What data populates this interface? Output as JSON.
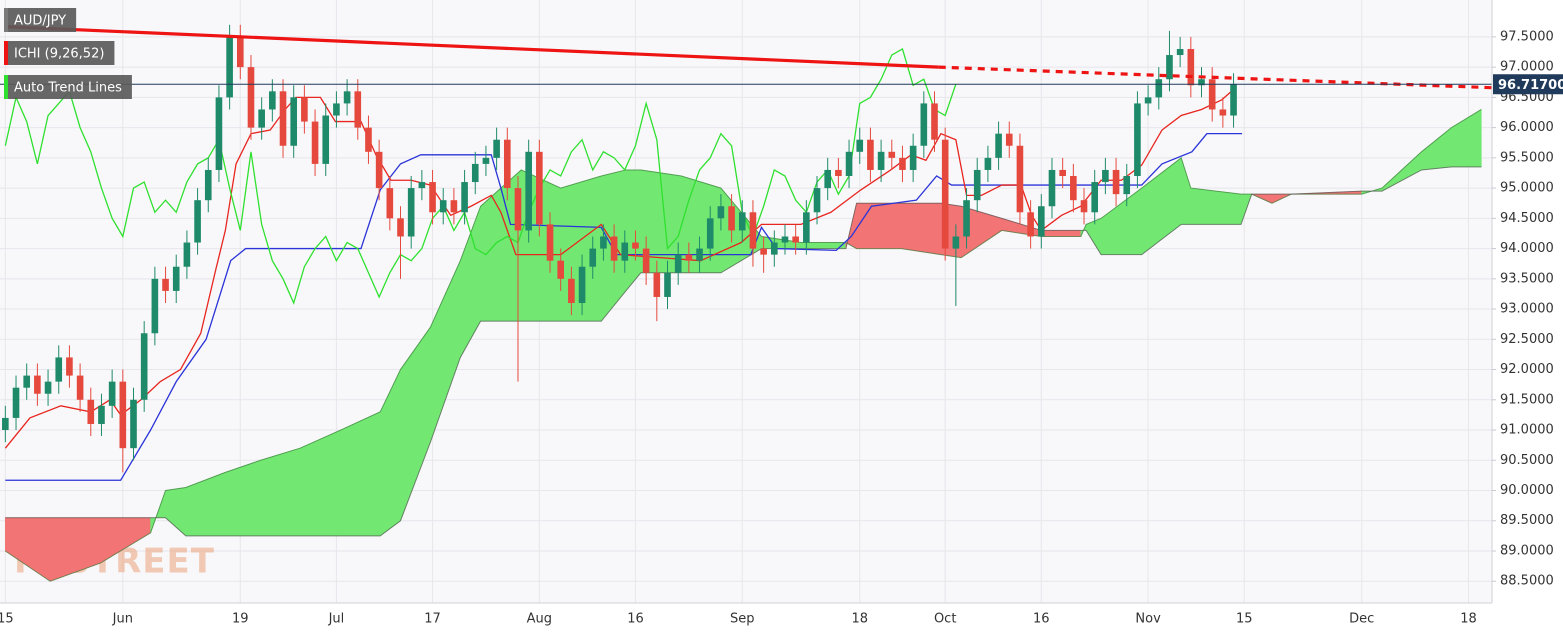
{
  "chart_data": {
    "type": "candlestick",
    "title": "AUD/JPY",
    "indicator": "ICHI (9,26,52)",
    "trend_label": "Auto Trend Lines",
    "watermark": "FXSTREET",
    "grid": true,
    "up_color": "#1f8a6a",
    "down_color": "#e5493d",
    "xlim": [
      -0.5,
      139.2
    ],
    "xticks": [
      {
        "value": 0,
        "label": "15"
      },
      {
        "value": 11,
        "label": "Jun"
      },
      {
        "value": 22,
        "label": "19"
      },
      {
        "value": 31,
        "label": "Jul"
      },
      {
        "value": 40,
        "label": "17"
      },
      {
        "value": 50,
        "label": "Aug"
      },
      {
        "value": 59,
        "label": "16"
      },
      {
        "value": 69,
        "label": "Sep"
      },
      {
        "value": 80,
        "label": "18"
      },
      {
        "value": 88,
        "label": "Oct"
      },
      {
        "value": 97,
        "label": "16"
      },
      {
        "value": 107,
        "label": "Nov"
      },
      {
        "value": 116,
        "label": "15"
      },
      {
        "value": 127,
        "label": "Dec"
      },
      {
        "value": 137,
        "label": "18"
      }
    ],
    "ylim": [
      88.14,
      98.11
    ],
    "yticks": [
      {
        "value": 88.5,
        "label": "88.5000"
      },
      {
        "value": 89,
        "label": "89.0000"
      },
      {
        "value": 89.5,
        "label": "89.5000"
      },
      {
        "value": 90,
        "label": "90.0000"
      },
      {
        "value": 90.5,
        "label": "90.5000"
      },
      {
        "value": 91,
        "label": "91.0000"
      },
      {
        "value": 91.5,
        "label": "91.5000"
      },
      {
        "value": 92,
        "label": "92.0000"
      },
      {
        "value": 92.5,
        "label": "92.5000"
      },
      {
        "value": 93,
        "label": "93.0000"
      },
      {
        "value": 93.5,
        "label": "93.5000"
      },
      {
        "value": 94,
        "label": "94.0000"
      },
      {
        "value": 94.5,
        "label": "94.5000"
      },
      {
        "value": 95,
        "label": "95.0000"
      },
      {
        "value": 95.5,
        "label": "95.5000"
      },
      {
        "value": 96,
        "label": "96.0000"
      },
      {
        "value": 96.5,
        "label": "96.5000"
      },
      {
        "value": 97,
        "label": "97.0000"
      },
      {
        "value": 97.5,
        "label": "97.5000"
      }
    ],
    "open": [
      91.0,
      91.2,
      91.7,
      91.9,
      91.6,
      91.8,
      92.2,
      91.9,
      91.5,
      91.1,
      91.4,
      91.8,
      90.7,
      91.5,
      92.6,
      93.5,
      93.3,
      93.7,
      94.1,
      94.8,
      95.3,
      96.5,
      97.5,
      97.0,
      96.0,
      96.3,
      96.6,
      95.7,
      96.5,
      96.1,
      95.4,
      96.2,
      96.4,
      96.6,
      96.0,
      95.6,
      95.0,
      94.5,
      94.2,
      95.0,
      95.1,
      94.6,
      94.8,
      94.6,
      95.1,
      95.4,
      95.5,
      95.8,
      95.0,
      94.3,
      95.6,
      94.4,
      93.8,
      93.5,
      93.1,
      93.7,
      94.0,
      94.2,
      93.8,
      94.1,
      94.0,
      93.6,
      93.2,
      93.6,
      93.9,
      93.8,
      94.0,
      94.5,
      94.7,
      94.3,
      94.6,
      94.0,
      93.9,
      94.1,
      94.2,
      94.1,
      94.6,
      95.0,
      95.3,
      95.2,
      95.6,
      95.8,
      95.3,
      95.6,
      95.5,
      95.3,
      95.7,
      96.4,
      95.8,
      94.0,
      94.2,
      94.8,
      95.3,
      95.5,
      95.9,
      95.7,
      94.6,
      94.2,
      94.7,
      95.3,
      95.2,
      94.8,
      94.6,
      95.1,
      95.3,
      94.9,
      95.2,
      96.4,
      96.5,
      96.8,
      97.2,
      97.3,
      96.7,
      96.8,
      96.3,
      96.2
    ],
    "high": [
      91.4,
      91.9,
      92.1,
      92.1,
      92.0,
      92.4,
      92.4,
      92.1,
      91.7,
      91.6,
      92.0,
      92.0,
      91.7,
      92.8,
      93.7,
      93.7,
      93.9,
      94.3,
      95.0,
      95.5,
      96.7,
      97.7,
      97.7,
      97.2,
      96.5,
      96.8,
      96.8,
      96.7,
      96.7,
      96.3,
      96.4,
      96.6,
      96.8,
      96.8,
      96.2,
      95.8,
      95.2,
      94.7,
      95.2,
      95.3,
      95.3,
      95.0,
      95.0,
      95.3,
      95.6,
      95.7,
      96.0,
      96.0,
      95.2,
      95.8,
      95.8,
      94.6,
      94.0,
      93.7,
      93.9,
      94.2,
      94.4,
      94.4,
      94.3,
      94.3,
      94.2,
      93.8,
      93.8,
      94.1,
      94.1,
      94.2,
      94.7,
      94.9,
      94.9,
      94.8,
      94.8,
      94.2,
      94.3,
      94.4,
      94.4,
      94.8,
      95.2,
      95.5,
      95.5,
      95.8,
      96.0,
      96.0,
      95.8,
      95.8,
      95.7,
      95.9,
      96.6,
      96.6,
      96.0,
      94.4,
      95.0,
      95.5,
      95.7,
      96.1,
      96.1,
      95.9,
      94.8,
      94.9,
      95.5,
      95.5,
      95.4,
      95.0,
      95.3,
      95.5,
      95.5,
      95.4,
      96.6,
      96.7,
      97.0,
      97.6,
      97.5,
      97.5,
      97.0,
      97.0,
      96.5,
      96.9
    ],
    "low": [
      90.8,
      91.0,
      91.5,
      91.4,
      91.4,
      91.6,
      91.7,
      91.3,
      90.9,
      90.9,
      91.2,
      90.3,
      90.5,
      91.3,
      92.4,
      93.1,
      93.1,
      93.5,
      93.9,
      94.6,
      95.1,
      96.3,
      96.8,
      95.8,
      95.8,
      96.1,
      95.5,
      95.5,
      95.9,
      95.2,
      95.2,
      96.0,
      96.2,
      95.8,
      95.4,
      94.8,
      94.3,
      93.5,
      94.0,
      94.8,
      94.4,
      94.4,
      94.4,
      94.4,
      94.9,
      95.2,
      95.3,
      94.8,
      91.8,
      94.1,
      94.2,
      93.6,
      93.3,
      92.9,
      92.9,
      93.5,
      93.8,
      93.6,
      93.6,
      93.8,
      93.4,
      92.8,
      93.0,
      93.4,
      93.6,
      93.6,
      93.8,
      94.3,
      94.1,
      94.1,
      93.7,
      93.6,
      93.7,
      93.9,
      93.9,
      93.9,
      94.4,
      94.8,
      95.0,
      95.0,
      95.4,
      95.1,
      95.1,
      95.3,
      95.1,
      95.1,
      95.5,
      95.6,
      93.8,
      93.05,
      94.0,
      94.6,
      95.1,
      95.3,
      95.5,
      94.4,
      94.0,
      94.0,
      94.5,
      95.0,
      94.6,
      94.4,
      94.4,
      94.9,
      94.7,
      94.7,
      95.0,
      96.2,
      96.3,
      96.6,
      97.0,
      96.5,
      96.5,
      96.1,
      96.0,
      96.0
    ],
    "close": [
      91.2,
      91.7,
      91.9,
      91.6,
      91.8,
      92.2,
      91.9,
      91.5,
      91.1,
      91.4,
      91.8,
      90.7,
      91.5,
      92.6,
      93.5,
      93.3,
      93.7,
      94.1,
      94.8,
      95.3,
      96.5,
      97.5,
      97.0,
      96.0,
      96.3,
      96.6,
      95.7,
      96.5,
      96.1,
      95.4,
      96.2,
      96.4,
      96.6,
      96.0,
      95.6,
      95.0,
      94.5,
      94.2,
      95.0,
      95.1,
      94.6,
      94.8,
      94.6,
      95.1,
      95.4,
      95.5,
      95.8,
      95.0,
      94.3,
      95.6,
      94.4,
      93.8,
      93.5,
      93.1,
      93.7,
      94.0,
      94.2,
      93.8,
      94.1,
      94.0,
      93.6,
      93.2,
      93.6,
      93.9,
      93.8,
      94.0,
      94.5,
      94.7,
      94.3,
      94.6,
      94.0,
      93.9,
      94.1,
      94.2,
      94.1,
      94.6,
      95.0,
      95.3,
      95.2,
      95.6,
      95.8,
      95.3,
      95.6,
      95.5,
      95.3,
      95.7,
      96.4,
      95.8,
      94.0,
      94.2,
      94.8,
      95.3,
      95.5,
      95.9,
      95.7,
      94.6,
      94.2,
      94.7,
      95.3,
      95.2,
      94.8,
      94.6,
      95.1,
      95.3,
      94.9,
      95.2,
      96.4,
      96.5,
      96.8,
      97.2,
      97.3,
      96.7,
      96.8,
      96.3,
      96.2,
      96.72
    ],
    "cloud": {
      "up_color": "#72e872",
      "down_color": "#f27474",
      "x": [
        0,
        4.2,
        8.9,
        13.6,
        15,
        16.9,
        20.6,
        23.9,
        27.6,
        31.4,
        35.1,
        37,
        39.8,
        42.6,
        44.5,
        48.3,
        52,
        55.8,
        58.1,
        59.5,
        63.3,
        67,
        70.8,
        74.5,
        78.7,
        79.7,
        83.9,
        87.6,
        89.5,
        93.3,
        97,
        100.7,
        101.2,
        102.6,
        106.4,
        110.1,
        111,
        115.7,
        116.7,
        118.6,
        120.4,
        127,
        128.9,
        132.6,
        135.4,
        138.2
      ],
      "span_a": [
        89.0,
        88.5,
        88.8,
        89.3,
        90.0,
        90.05,
        90.3,
        90.5,
        90.7,
        91.0,
        91.3,
        92.0,
        92.7,
        93.8,
        94.7,
        95.3,
        95.0,
        95.2,
        95.3,
        95.3,
        95.2,
        95.0,
        94.2,
        94.1,
        94.1,
        94.0,
        94.0,
        93.9,
        93.85,
        94.3,
        94.2,
        94.2,
        94.4,
        94.5,
        95.0,
        95.5,
        95.0,
        94.9,
        94.9,
        94.75,
        94.9,
        94.9,
        95.0,
        95.6,
        96.0,
        96.3
      ],
      "span_b": [
        89.55,
        89.55,
        89.55,
        89.55,
        89.55,
        89.25,
        89.25,
        89.25,
        89.25,
        89.25,
        89.25,
        89.5,
        90.8,
        92.2,
        92.8,
        92.8,
        92.8,
        92.8,
        93.3,
        93.6,
        93.6,
        93.6,
        94.0,
        94.0,
        94.0,
        94.75,
        94.75,
        94.75,
        94.7,
        94.5,
        94.3,
        94.3,
        94.3,
        93.9,
        93.9,
        94.4,
        94.4,
        94.4,
        94.9,
        94.9,
        94.9,
        94.95,
        94.95,
        95.3,
        95.35,
        95.35
      ]
    },
    "lines": [
      {
        "color": "#2b34d8",
        "x": [
          0,
          10.8,
          13.6,
          16,
          18.8,
          21.1,
          22.5,
          33.3,
          35.1,
          37,
          38.9,
          45.5,
          46.4,
          47.3,
          55.8,
          57.2,
          69.8,
          70.8,
          72.2,
          77.8,
          79.2,
          81.1,
          85.3,
          87.2,
          88.6,
          89.5,
          106.4,
          108.3,
          111.1,
          112.5,
          115.8
        ],
        "values": [
          90.17,
          90.17,
          91.0,
          91.8,
          92.5,
          93.8,
          94.0,
          94.0,
          94.97,
          95.4,
          95.55,
          95.55,
          95.0,
          94.4,
          94.35,
          93.9,
          93.9,
          94.35,
          94.0,
          93.97,
          94.2,
          94.7,
          94.8,
          95.2,
          95.05,
          95.05,
          95.05,
          95.4,
          95.6,
          95.9,
          95.9
        ]
      },
      {
        "color": "#e8251f",
        "x": [
          0,
          2.3,
          5.2,
          8,
          9.8,
          10.8,
          12.7,
          14.5,
          16.4,
          18.3,
          19.7,
          20.6,
          21.6,
          23,
          24.8,
          26.2,
          27.2,
          29.5,
          30.9,
          33.3,
          34.7,
          36.1,
          38,
          39.8,
          41.7,
          43.6,
          45.5,
          46.4,
          47.8,
          52,
          55.8,
          57.6,
          65.1,
          68.9,
          70.8,
          74.5,
          77.3,
          80.1,
          82.9,
          84.8,
          86.2,
          87.6,
          89,
          90,
          91.4,
          93.3,
          95.1,
          96.1,
          97,
          98.9,
          100.7,
          102.6,
          104.5,
          106.4,
          108.3,
          110.1,
          112,
          113.9,
          115
        ],
        "values": [
          90.7,
          91.2,
          91.4,
          91.3,
          91.5,
          91.25,
          91.5,
          91.8,
          92.0,
          92.6,
          93.65,
          94.3,
          95.4,
          95.9,
          95.96,
          96.3,
          96.5,
          96.5,
          96.1,
          96.1,
          95.55,
          95.13,
          95.13,
          95.05,
          94.55,
          94.7,
          94.88,
          94.6,
          93.9,
          93.9,
          94.4,
          93.9,
          93.8,
          94.1,
          94.4,
          94.4,
          94.6,
          94.97,
          95.3,
          95.55,
          95.46,
          95.9,
          95.8,
          94.88,
          94.88,
          95.05,
          95.05,
          94.55,
          94.3,
          94.55,
          94.7,
          95.13,
          95.13,
          95.38,
          95.96,
          96.2,
          96.3,
          96.46,
          96.63
        ]
      },
      {
        "color": "#2fe02f",
        "values": [
          95.7,
          96.5,
          96.1,
          95.4,
          96.2,
          96.4,
          96.6,
          96.0,
          95.6,
          95.0,
          94.5,
          94.2,
          95.0,
          95.1,
          94.6,
          94.8,
          94.6,
          95.1,
          95.4,
          95.5,
          95.8,
          95.0,
          94.3,
          95.6,
          94.4,
          93.8,
          93.5,
          93.1,
          93.7,
          94.0,
          94.2,
          93.8,
          94.1,
          94.0,
          93.6,
          93.2,
          93.6,
          93.9,
          93.8,
          94.0,
          94.5,
          94.7,
          94.3,
          94.6,
          94.0,
          93.9,
          94.1,
          94.2,
          94.1,
          94.6,
          95.0,
          95.3,
          95.2,
          95.6,
          95.8,
          95.3,
          95.6,
          95.5,
          95.3,
          95.7,
          96.4,
          95.8,
          94.0,
          94.2,
          94.8,
          95.3,
          95.5,
          95.9,
          95.7,
          94.6,
          94.2,
          94.7,
          95.3,
          95.2,
          94.8,
          94.6,
          95.1,
          95.3,
          94.9,
          95.2,
          96.4,
          96.5,
          96.8,
          97.2,
          97.3,
          96.7,
          96.8,
          96.3,
          96.2,
          96.72
        ]
      }
    ],
    "trend_line": {
      "color": "#ee1414",
      "x": [
        0,
        87.4,
        139.2
      ],
      "values": [
        97.67,
        97.0,
        96.66
      ]
    },
    "last_price": {
      "value": 96.717,
      "label": "96.71700",
      "color": "#1f3a5a"
    }
  }
}
